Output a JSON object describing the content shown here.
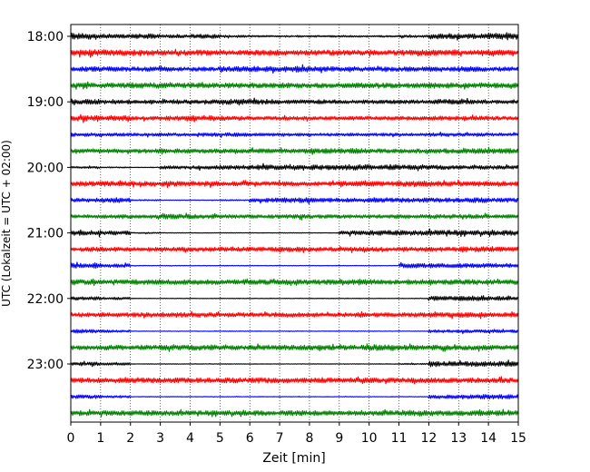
{
  "chart_data": {
    "type": "line",
    "xlabel": "Zeit  [min]",
    "ylabel": "UTC (Lokalzeit = UTC + 02:00)",
    "xlim": [
      0,
      15
    ],
    "x_ticks": [
      "0",
      "1",
      "2",
      "3",
      "4",
      "5",
      "6",
      "7",
      "8",
      "9",
      "10",
      "11",
      "12",
      "13",
      "14",
      "15"
    ],
    "y_ticks": [
      "18:00",
      "19:00",
      "20:00",
      "21:00",
      "22:00",
      "23:00"
    ],
    "grid": "vertical dotted lines at each minute",
    "trace_colors": [
      "#000000",
      "#ff0000",
      "#0000ff",
      "#008000"
    ],
    "series": [
      {
        "start": "18:00",
        "color": "#000000",
        "activity": [
          1.0,
          0.6,
          0.8,
          0.5,
          0.7,
          0.4,
          0.3,
          0.3,
          0.3,
          0.3,
          0.3,
          0.4,
          0.9,
          0.8,
          1.0
        ]
      },
      {
        "start": "18:15",
        "color": "#ff0000",
        "activity": [
          1.0,
          1.0,
          0.9,
          0.8,
          0.9,
          0.8,
          0.9,
          0.8,
          0.9,
          0.8,
          0.8,
          0.9,
          0.9,
          0.8,
          0.9
        ]
      },
      {
        "start": "18:30",
        "color": "#0000ff",
        "activity": [
          0.8,
          0.7,
          0.7,
          0.7,
          0.7,
          0.8,
          0.9,
          1.0,
          0.8,
          0.7,
          0.7,
          0.7,
          0.8,
          0.8,
          0.7
        ]
      },
      {
        "start": "18:45",
        "color": "#008000",
        "activity": [
          0.8,
          0.8,
          0.9,
          0.8,
          0.8,
          0.8,
          0.8,
          0.8,
          0.8,
          0.8,
          0.8,
          0.8,
          0.9,
          0.8,
          0.8
        ]
      },
      {
        "start": "19:00",
        "color": "#000000",
        "activity": [
          0.8,
          0.7,
          0.6,
          0.7,
          0.7,
          0.9,
          0.8,
          0.6,
          0.7,
          0.6,
          0.6,
          0.6,
          0.8,
          0.7,
          0.6
        ]
      },
      {
        "start": "19:15",
        "color": "#ff0000",
        "activity": [
          0.9,
          0.8,
          0.6,
          0.7,
          0.9,
          0.7,
          0.6,
          0.6,
          0.6,
          0.6,
          0.6,
          0.6,
          0.7,
          0.7,
          0.6
        ]
      },
      {
        "start": "19:30",
        "color": "#0000ff",
        "activity": [
          0.6,
          0.5,
          0.5,
          0.5,
          0.6,
          0.6,
          0.5,
          0.5,
          0.5,
          0.5,
          0.5,
          0.5,
          0.6,
          0.6,
          0.5
        ]
      },
      {
        "start": "19:45",
        "color": "#008000",
        "activity": [
          0.7,
          0.7,
          0.7,
          0.7,
          0.7,
          0.7,
          0.7,
          0.7,
          0.8,
          0.8,
          0.7,
          0.7,
          0.8,
          0.8,
          0.8
        ]
      },
      {
        "start": "20:00",
        "color": "#000000",
        "activity": [
          0.3,
          0.2,
          0.1,
          0.5,
          0.6,
          0.7,
          0.8,
          0.7,
          0.8,
          0.9,
          0.8,
          0.7,
          0.7,
          0.6,
          0.6
        ]
      },
      {
        "start": "20:15",
        "color": "#ff0000",
        "activity": [
          0.8,
          0.8,
          0.8,
          0.8,
          0.8,
          0.7,
          0.7,
          0.7,
          0.7,
          0.8,
          0.8,
          0.9,
          0.8,
          0.8,
          0.8
        ]
      },
      {
        "start": "20:30",
        "color": "#0000ff",
        "activity": [
          0.7,
          0.8,
          0.2,
          0.1,
          0.1,
          0.2,
          0.7,
          0.8,
          0.7,
          0.7,
          0.7,
          0.7,
          0.7,
          0.8,
          0.7
        ]
      },
      {
        "start": "20:45",
        "color": "#008000",
        "activity": [
          0.6,
          0.6,
          0.6,
          0.8,
          0.7,
          0.6,
          0.6,
          0.7,
          0.6,
          0.6,
          0.6,
          0.6,
          0.7,
          0.7,
          0.6
        ]
      },
      {
        "start": "21:00",
        "color": "#000000",
        "activity": [
          0.8,
          0.7,
          0.2,
          0.1,
          0.1,
          0.1,
          0.1,
          0.1,
          0.1,
          0.7,
          0.8,
          0.8,
          0.9,
          0.8,
          0.8
        ]
      },
      {
        "start": "21:15",
        "color": "#ff0000",
        "activity": [
          0.7,
          0.7,
          0.7,
          0.7,
          0.7,
          0.7,
          0.7,
          0.7,
          0.7,
          0.7,
          0.7,
          0.7,
          0.7,
          0.8,
          0.7
        ]
      },
      {
        "start": "21:30",
        "color": "#0000ff",
        "activity": [
          0.8,
          0.6,
          0.1,
          0.1,
          0.1,
          0.1,
          0.1,
          0.1,
          0.1,
          0.1,
          0.1,
          0.7,
          0.7,
          0.7,
          0.7
        ]
      },
      {
        "start": "21:45",
        "color": "#008000",
        "activity": [
          0.8,
          0.8,
          0.8,
          0.8,
          0.8,
          0.8,
          0.8,
          0.8,
          0.8,
          1.0,
          0.8,
          0.8,
          0.8,
          0.8,
          0.8
        ]
      },
      {
        "start": "22:00",
        "color": "#000000",
        "activity": [
          0.6,
          0.4,
          0.1,
          0.1,
          0.1,
          0.1,
          0.1,
          0.1,
          0.1,
          0.1,
          0.1,
          0.1,
          0.7,
          0.8,
          0.7
        ]
      },
      {
        "start": "22:15",
        "color": "#ff0000",
        "activity": [
          0.7,
          0.7,
          0.7,
          0.8,
          0.8,
          0.7,
          0.7,
          0.7,
          0.7,
          0.7,
          0.7,
          0.7,
          0.8,
          0.8,
          0.7
        ]
      },
      {
        "start": "22:30",
        "color": "#0000ff",
        "activity": [
          0.6,
          0.4,
          0.1,
          0.1,
          0.1,
          0.1,
          0.1,
          0.1,
          0.1,
          0.1,
          0.1,
          0.1,
          0.5,
          0.5,
          0.5
        ]
      },
      {
        "start": "22:45",
        "color": "#008000",
        "activity": [
          0.7,
          0.8,
          0.7,
          0.8,
          0.9,
          0.7,
          0.8,
          0.8,
          0.8,
          0.8,
          1.0,
          0.8,
          0.8,
          0.8,
          0.8
        ]
      },
      {
        "start": "23:00",
        "color": "#000000",
        "activity": [
          0.6,
          0.4,
          0.1,
          0.1,
          0.1,
          0.1,
          0.1,
          0.1,
          0.1,
          0.1,
          0.1,
          0.2,
          0.9,
          0.8,
          0.8
        ]
      },
      {
        "start": "23:15",
        "color": "#ff0000",
        "activity": [
          0.8,
          0.8,
          0.8,
          0.8,
          0.8,
          0.8,
          0.9,
          0.8,
          0.8,
          0.8,
          0.8,
          0.8,
          0.8,
          0.8,
          0.8
        ]
      },
      {
        "start": "23:30",
        "color": "#0000ff",
        "activity": [
          0.6,
          0.4,
          0.1,
          0.1,
          0.1,
          0.1,
          0.1,
          0.1,
          0.1,
          0.1,
          0.1,
          0.1,
          0.6,
          0.7,
          0.7
        ]
      },
      {
        "start": "23:45",
        "color": "#008000",
        "activity": [
          0.8,
          0.8,
          0.8,
          0.8,
          0.8,
          0.8,
          0.8,
          0.8,
          0.8,
          0.8,
          0.8,
          0.9,
          0.8,
          0.8,
          0.8
        ]
      }
    ]
  }
}
